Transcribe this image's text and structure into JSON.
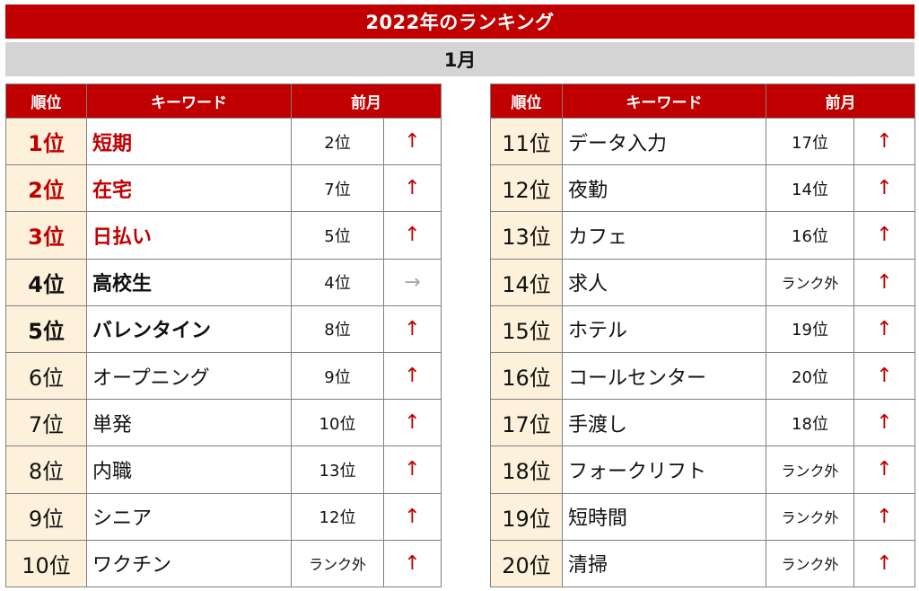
{
  "title": "2022年のランキング",
  "month": "1月",
  "headers": {
    "rank": "順位",
    "keyword": "キーワード",
    "prev": "前月"
  },
  "left_rows": [
    {
      "rank": "1位",
      "keyword": "短期",
      "prev": "2位",
      "arrow": "↑"
    },
    {
      "rank": "2位",
      "keyword": "在宅",
      "prev": "7位",
      "arrow": "↑"
    },
    {
      "rank": "3位",
      "keyword": "日払い",
      "prev": "5位",
      "arrow": "↑"
    },
    {
      "rank": "4位",
      "keyword": "高校生",
      "prev": "4位",
      "arrow": "→"
    },
    {
      "rank": "5位",
      "keyword": "バレンタイン",
      "prev": "8位",
      "arrow": "↑"
    },
    {
      "rank": "6位",
      "keyword": "オープニング",
      "prev": "9位",
      "arrow": "↑"
    },
    {
      "rank": "7位",
      "keyword": "単発",
      "prev": "10位",
      "arrow": "↑"
    },
    {
      "rank": "8位",
      "keyword": "内職",
      "prev": "13位",
      "arrow": "↑"
    },
    {
      "rank": "9位",
      "keyword": "シニア",
      "prev": "12位",
      "arrow": "↑"
    },
    {
      "rank": "10位",
      "keyword": "ワクチン",
      "prev": "ランク外",
      "arrow": "↑"
    }
  ],
  "right_rows": [
    {
      "rank": "11位",
      "keyword": "データ入力",
      "prev": "17位",
      "arrow": "↑"
    },
    {
      "rank": "12位",
      "keyword": "夜勤",
      "prev": "14位",
      "arrow": "↑"
    },
    {
      "rank": "13位",
      "keyword": "カフェ",
      "prev": "16位",
      "arrow": "↑"
    },
    {
      "rank": "14位",
      "keyword": "求人",
      "prev": "ランク外",
      "arrow": "↑"
    },
    {
      "rank": "15位",
      "keyword": "ホテル",
      "prev": "19位",
      "arrow": "↑"
    },
    {
      "rank": "16位",
      "keyword": "コールセンター",
      "prev": "20位",
      "arrow": "↑"
    },
    {
      "rank": "17位",
      "keyword": "手渡し",
      "prev": "18位",
      "arrow": "↑"
    },
    {
      "rank": "18位",
      "keyword": "フォークリフト",
      "prev": "ランク外",
      "arrow": "↑"
    },
    {
      "rank": "19位",
      "keyword": "短時間",
      "prev": "ランク外",
      "arrow": "↑"
    },
    {
      "rank": "20位",
      "keyword": "清掃",
      "prev": "ランク外",
      "arrow": "↑"
    }
  ],
  "colors": {
    "accent_red": "#c00000",
    "header_gray": "#d4d4d4",
    "rank_cell_bg": "#fdf1db",
    "flat_arrow": "#a6a6a6"
  }
}
